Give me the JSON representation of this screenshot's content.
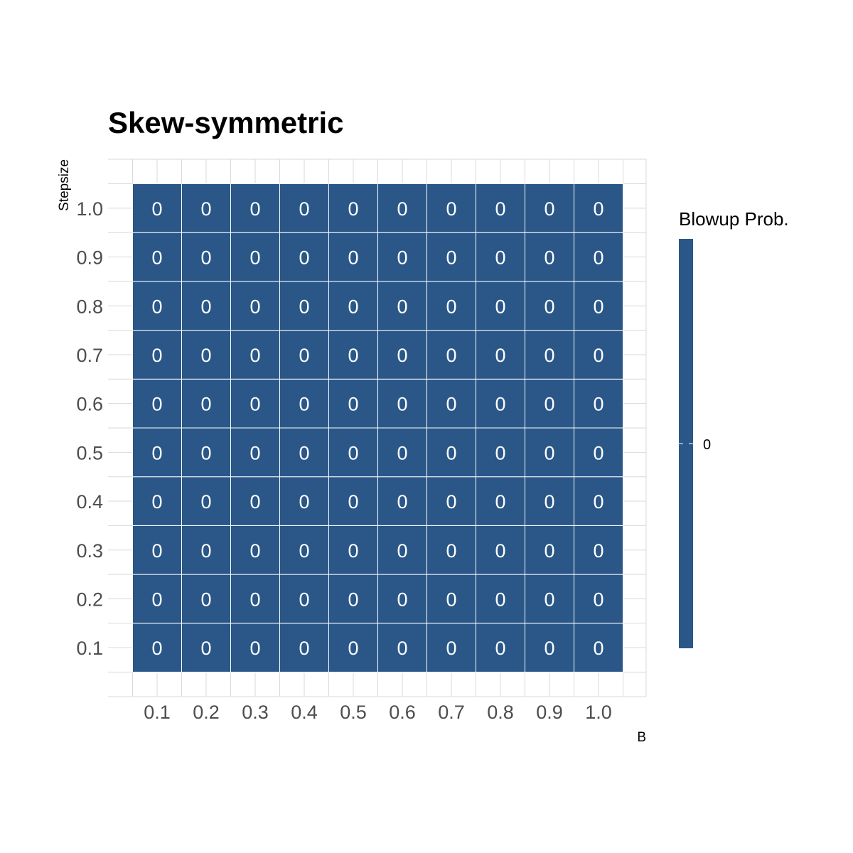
{
  "chart_data": {
    "type": "heatmap",
    "title": "Skew-symmetric",
    "xlabel": "B",
    "ylabel": "Stepsize",
    "x_categories": [
      "0.1",
      "0.2",
      "0.3",
      "0.4",
      "0.5",
      "0.6",
      "0.7",
      "0.8",
      "0.9",
      "1.0"
    ],
    "y_categories": [
      "0.1",
      "0.2",
      "0.3",
      "0.4",
      "0.5",
      "0.6",
      "0.7",
      "0.8",
      "0.9",
      "1.0"
    ],
    "values": [
      [
        0,
        0,
        0,
        0,
        0,
        0,
        0,
        0,
        0,
        0
      ],
      [
        0,
        0,
        0,
        0,
        0,
        0,
        0,
        0,
        0,
        0
      ],
      [
        0,
        0,
        0,
        0,
        0,
        0,
        0,
        0,
        0,
        0
      ],
      [
        0,
        0,
        0,
        0,
        0,
        0,
        0,
        0,
        0,
        0
      ],
      [
        0,
        0,
        0,
        0,
        0,
        0,
        0,
        0,
        0,
        0
      ],
      [
        0,
        0,
        0,
        0,
        0,
        0,
        0,
        0,
        0,
        0
      ],
      [
        0,
        0,
        0,
        0,
        0,
        0,
        0,
        0,
        0,
        0
      ],
      [
        0,
        0,
        0,
        0,
        0,
        0,
        0,
        0,
        0,
        0
      ],
      [
        0,
        0,
        0,
        0,
        0,
        0,
        0,
        0,
        0,
        0
      ],
      [
        0,
        0,
        0,
        0,
        0,
        0,
        0,
        0,
        0,
        0
      ]
    ],
    "cell_color": "#2a5788",
    "cell_border_color": "#ffffff",
    "cell_label_color": "#ffffff",
    "legend": {
      "title": "Blowup Prob.",
      "placement": "right",
      "ticks": [
        "0"
      ],
      "color": "#2a5788"
    },
    "grid": true
  }
}
